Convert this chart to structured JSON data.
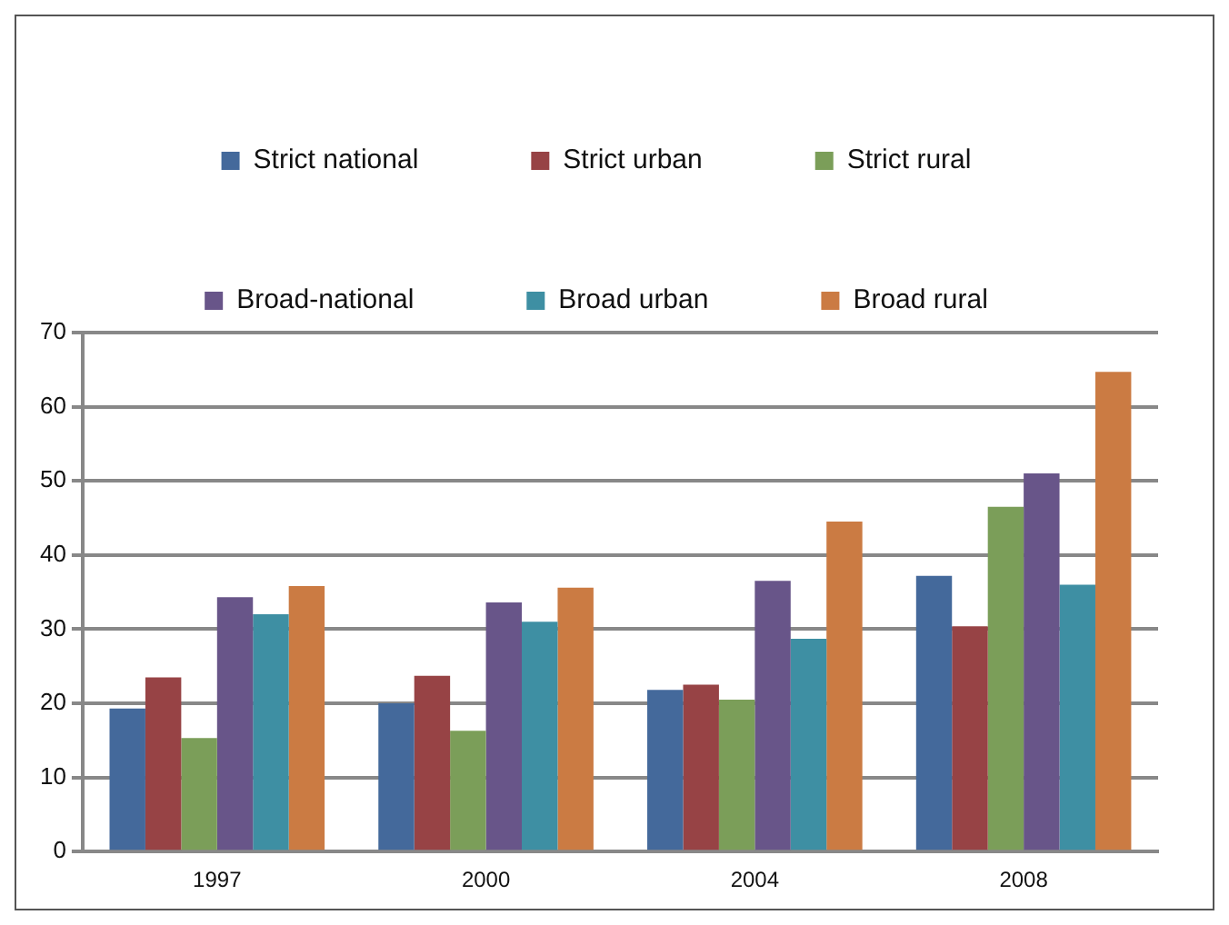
{
  "chart_data": {
    "type": "bar",
    "categories": [
      "1997",
      "2000",
      "2004",
      "2008"
    ],
    "series": [
      {
        "name": "Strict national",
        "color": "#44699b",
        "values": [
          19.3,
          20.0,
          21.8,
          37.2
        ]
      },
      {
        "name": "Strict urban",
        "color": "#974345",
        "values": [
          23.5,
          23.7,
          22.5,
          30.4
        ]
      },
      {
        "name": "Strict rural",
        "color": "#7b9e59",
        "values": [
          15.3,
          16.3,
          20.5,
          46.5
        ]
      },
      {
        "name": "Broad-national",
        "color": "#685589",
        "values": [
          34.3,
          33.6,
          36.5,
          51.0
        ]
      },
      {
        "name": "Broad urban",
        "color": "#3e8fa3",
        "values": [
          32.0,
          31.0,
          28.7,
          36.0
        ]
      },
      {
        "name": "Broad rural",
        "color": "#cb7b43",
        "values": [
          35.8,
          35.6,
          44.5,
          64.7
        ]
      }
    ],
    "ylim": [
      0,
      70
    ],
    "yticks": [
      0,
      10,
      20,
      30,
      40,
      50,
      60,
      70
    ],
    "grid": "y",
    "legend": "top"
  }
}
